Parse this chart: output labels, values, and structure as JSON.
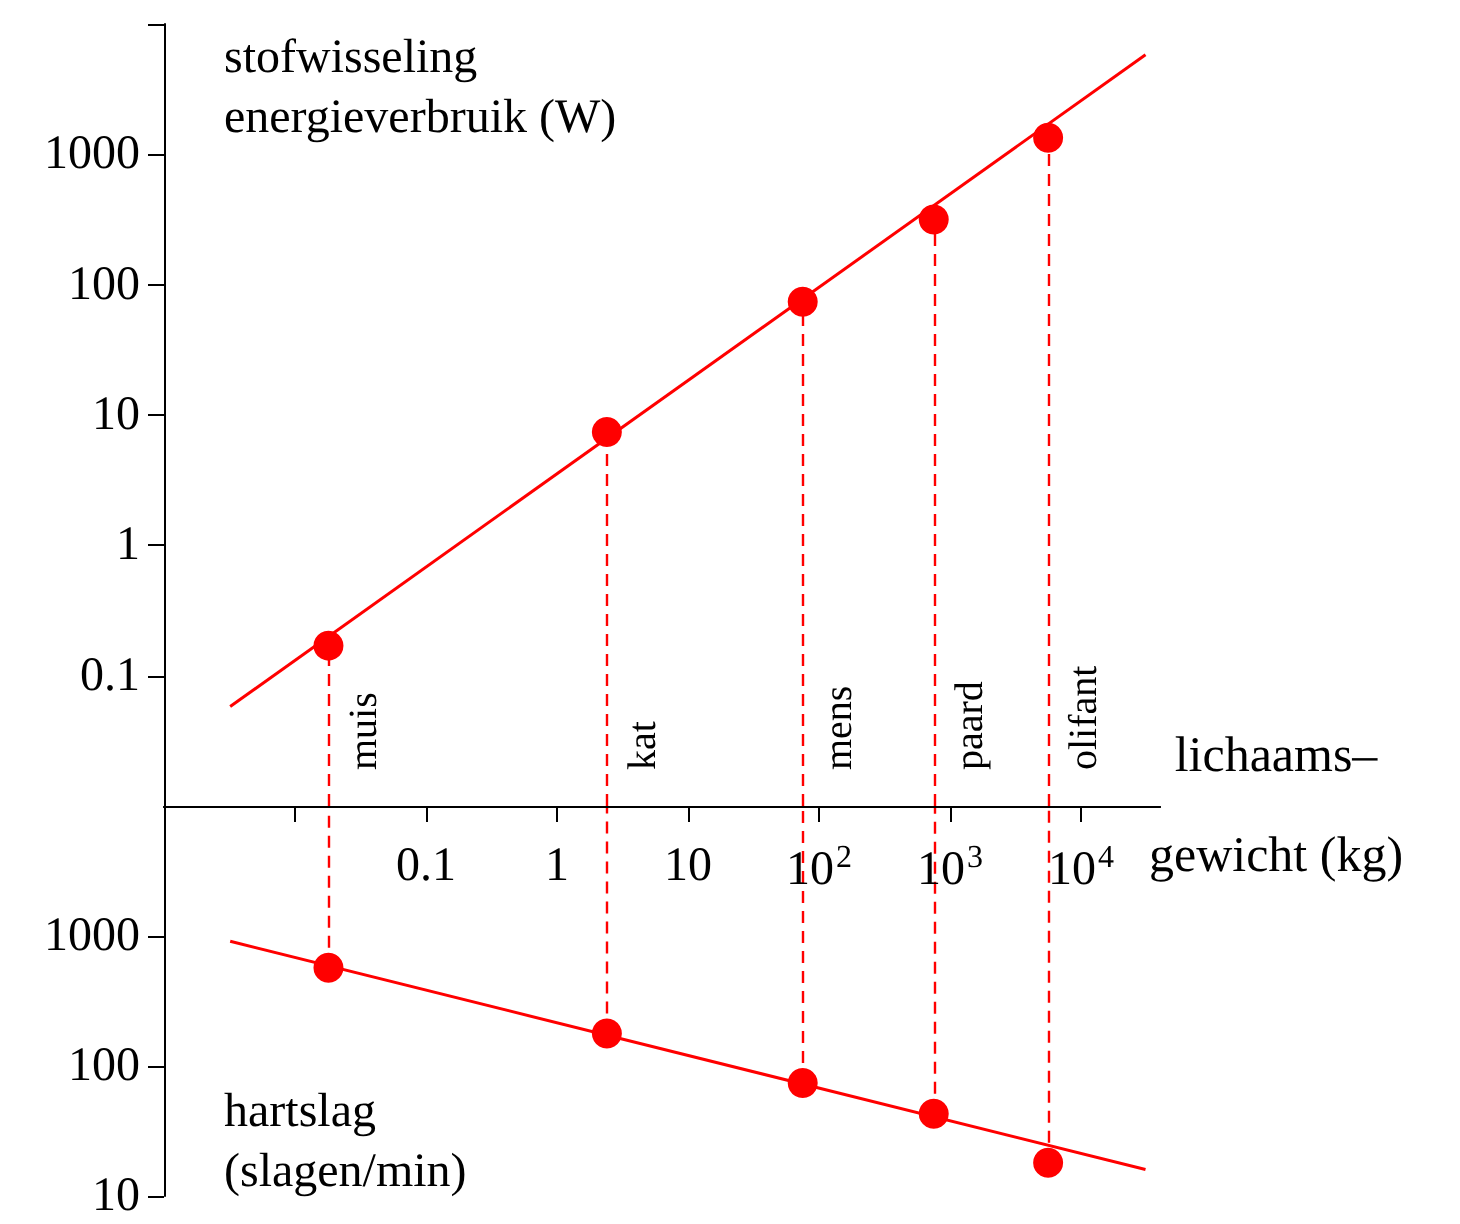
{
  "chart_data": [
    {
      "type": "scatter",
      "ylabel": "stofwisseling energieverbruik (W)",
      "xlabel": "lichaams– gewicht (kg)",
      "log": "xy",
      "grid": false,
      "xlim": [
        0.001,
        40000
      ],
      "xticks": [
        {
          "value": 0.01,
          "label": null
        },
        0.1,
        1,
        10,
        {
          "value": 100,
          "label": "10$^{2}$"
        },
        {
          "value": 1000,
          "label": "10$^{3}$"
        },
        {
          "value": 10000,
          "label": "10$^{4}$"
        }
      ],
      "ylim": [
        0.01,
        10000
      ],
      "yticks": [
        0.1,
        1,
        10,
        100,
        1000,
        {
          "value": 10000,
          "label": null
        }
      ],
      "series": [
        {
          "color": "#ff0000",
          "marker": "circle",
          "x": [
            0.018,
            2.4,
            75,
            750,
            5600
          ],
          "values": [
            0.17,
            7.4,
            74,
            316,
            1340
          ]
        },
        {
          "type": "line",
          "color": "#ff0000",
          "marker": "none",
          "line_style": "solid",
          "x": [
            0.0032,
            31000
          ],
          "values": [
            0.058,
            5800
          ]
        }
      ],
      "ref_lines": [
        {
          "axis": "x",
          "value": 0.018,
          "label": "muis",
          "color": "#ff0000",
          "line_style": "dashed"
        },
        {
          "axis": "x",
          "value": 2.4,
          "label": "kat",
          "color": "#ff0000",
          "line_style": "dashed"
        },
        {
          "axis": "x",
          "value": 75,
          "label": "mens",
          "color": "#ff0000",
          "line_style": "dashed"
        },
        {
          "axis": "x",
          "value": 750,
          "label": "paard",
          "color": "#ff0000",
          "line_style": "dashed"
        },
        {
          "axis": "x",
          "value": 5600,
          "label": "olifant",
          "color": "#ff0000",
          "line_style": "dashed"
        }
      ]
    },
    {
      "type": "scatter",
      "ylabel": "hartslag (slagen/min)",
      "log": "xy",
      "grid": false,
      "tick_labels": "y",
      "xlim": [
        0.001,
        40000
      ],
      "ylim": [
        10,
        10000
      ],
      "yticks": [
        10,
        100,
        1000
      ],
      "series": [
        {
          "color": "#ff0000",
          "marker": "circle",
          "x": [
            0.018,
            2.4,
            75,
            750,
            5600
          ],
          "values": [
            570,
            178,
            74,
            43,
            18
          ]
        },
        {
          "type": "line",
          "color": "#ff0000",
          "marker": "none",
          "line_style": "solid",
          "x": [
            0.0032,
            31000
          ],
          "values": [
            910,
            16
          ]
        }
      ],
      "ref_lines": [
        {
          "axis": "x",
          "value": 0.018,
          "color": "#ff0000",
          "line_style": "dashed"
        },
        {
          "axis": "x",
          "value": 2.4,
          "color": "#ff0000",
          "line_style": "dashed"
        },
        {
          "axis": "x",
          "value": 75,
          "color": "#ff0000",
          "line_style": "dashed"
        },
        {
          "axis": "x",
          "value": 750,
          "color": "#ff0000",
          "line_style": "dashed"
        },
        {
          "axis": "x",
          "value": 5600,
          "color": "#ff0000",
          "line_style": "dashed"
        }
      ]
    }
  ]
}
